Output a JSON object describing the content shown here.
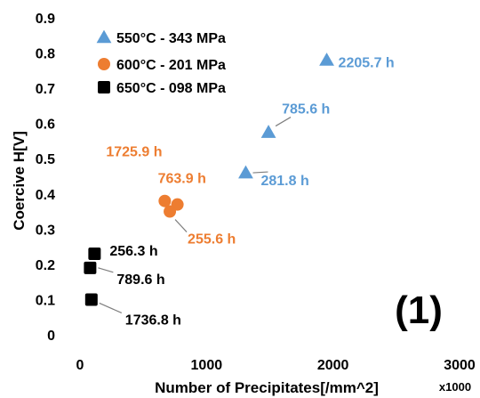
{
  "chart_data": {
    "type": "scatter",
    "title": "",
    "panel_label": "(1)",
    "xlabel": "Number of Precipitates[/mm^2]",
    "x_multiplier": "x1000",
    "ylabel": "Coercive H[V]",
    "xlim": [
      0,
      3000
    ],
    "ylim": [
      0,
      0.9
    ],
    "x_ticks": [
      "0",
      "1000",
      "2000",
      "3000"
    ],
    "y_ticks": [
      "0",
      "0.1",
      "0.2",
      "0.3",
      "0.4",
      "0.5",
      "0.6",
      "0.7",
      "0.8",
      "0.9"
    ],
    "grid": false,
    "legend_position": "top-left",
    "series": [
      {
        "name": "550°C - 343 MPa",
        "color": "#5b9bd5",
        "marker": "triangle",
        "points": [
          {
            "x": 1950,
            "y": 0.78,
            "label": "2205.7 h"
          },
          {
            "x": 1490,
            "y": 0.575,
            "label": "785.6 h"
          },
          {
            "x": 1310,
            "y": 0.46,
            "label": "281.8 h"
          }
        ]
      },
      {
        "name": "600°C - 201 MPa",
        "color": "#ed7d31",
        "marker": "circle",
        "points": [
          {
            "x": 670,
            "y": 0.38,
            "label": "1725.9 h"
          },
          {
            "x": 770,
            "y": 0.37,
            "label": "763.9 h"
          },
          {
            "x": 710,
            "y": 0.35,
            "label": "255.6 h"
          }
        ]
      },
      {
        "name": "650°C - 098 MPa",
        "color": "#000000",
        "marker": "square",
        "points": [
          {
            "x": 115,
            "y": 0.23,
            "label": "256.3 h"
          },
          {
            "x": 80,
            "y": 0.19,
            "label": "789.6 h"
          },
          {
            "x": 90,
            "y": 0.1,
            "label": "1736.8 h"
          }
        ]
      }
    ]
  }
}
